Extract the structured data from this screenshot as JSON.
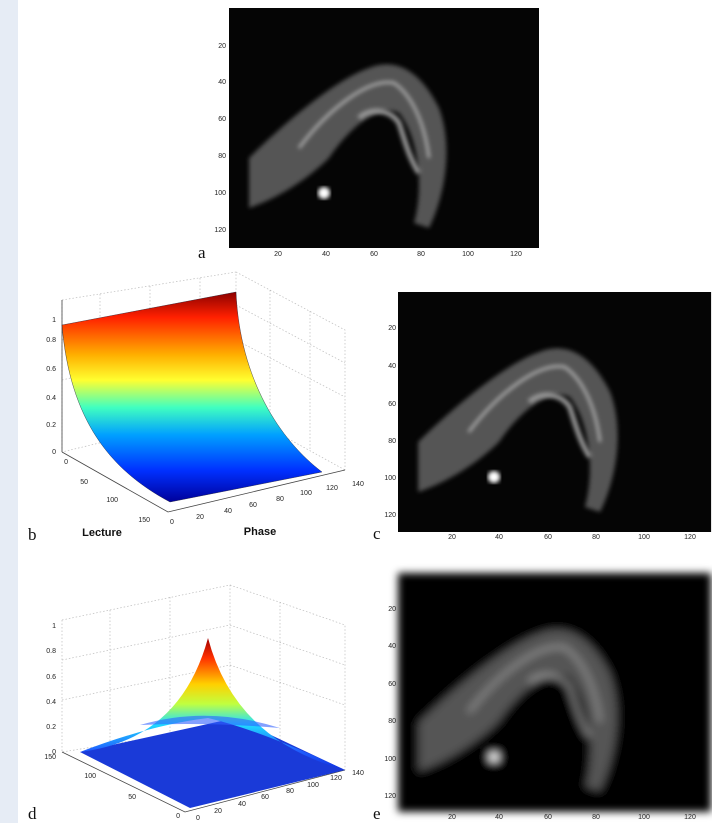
{
  "panels": [
    {
      "label": "a",
      "xticks": [
        20,
        40,
        60,
        80,
        100,
        120
      ],
      "yticks": [
        20,
        40,
        60,
        80,
        100,
        120
      ]
    },
    {
      "label": "b",
      "zticks": [
        0,
        0.2,
        0.4,
        0.6,
        0.8,
        1
      ],
      "left_ticks": [
        0,
        50,
        100,
        150
      ],
      "right_ticks": [
        0,
        20,
        40,
        60,
        80,
        100,
        120,
        140
      ],
      "left_axis_label": "Lecture",
      "right_axis_label": "Phase"
    },
    {
      "label": "c",
      "xticks": [
        20,
        40,
        60,
        80,
        100,
        120
      ],
      "yticks": [
        20,
        40,
        60,
        80,
        100,
        120
      ]
    },
    {
      "label": "d",
      "zticks": [
        0,
        0.2,
        0.4,
        0.6,
        0.8,
        1
      ],
      "left_ticks": [
        150,
        100,
        50,
        0
      ],
      "right_ticks": [
        0,
        20,
        40,
        60,
        80,
        100,
        120,
        140
      ]
    },
    {
      "label": "e",
      "xticks": [
        20,
        40,
        60,
        80,
        100,
        120
      ],
      "yticks": [
        20,
        40,
        60,
        80,
        100,
        120
      ]
    }
  ]
}
